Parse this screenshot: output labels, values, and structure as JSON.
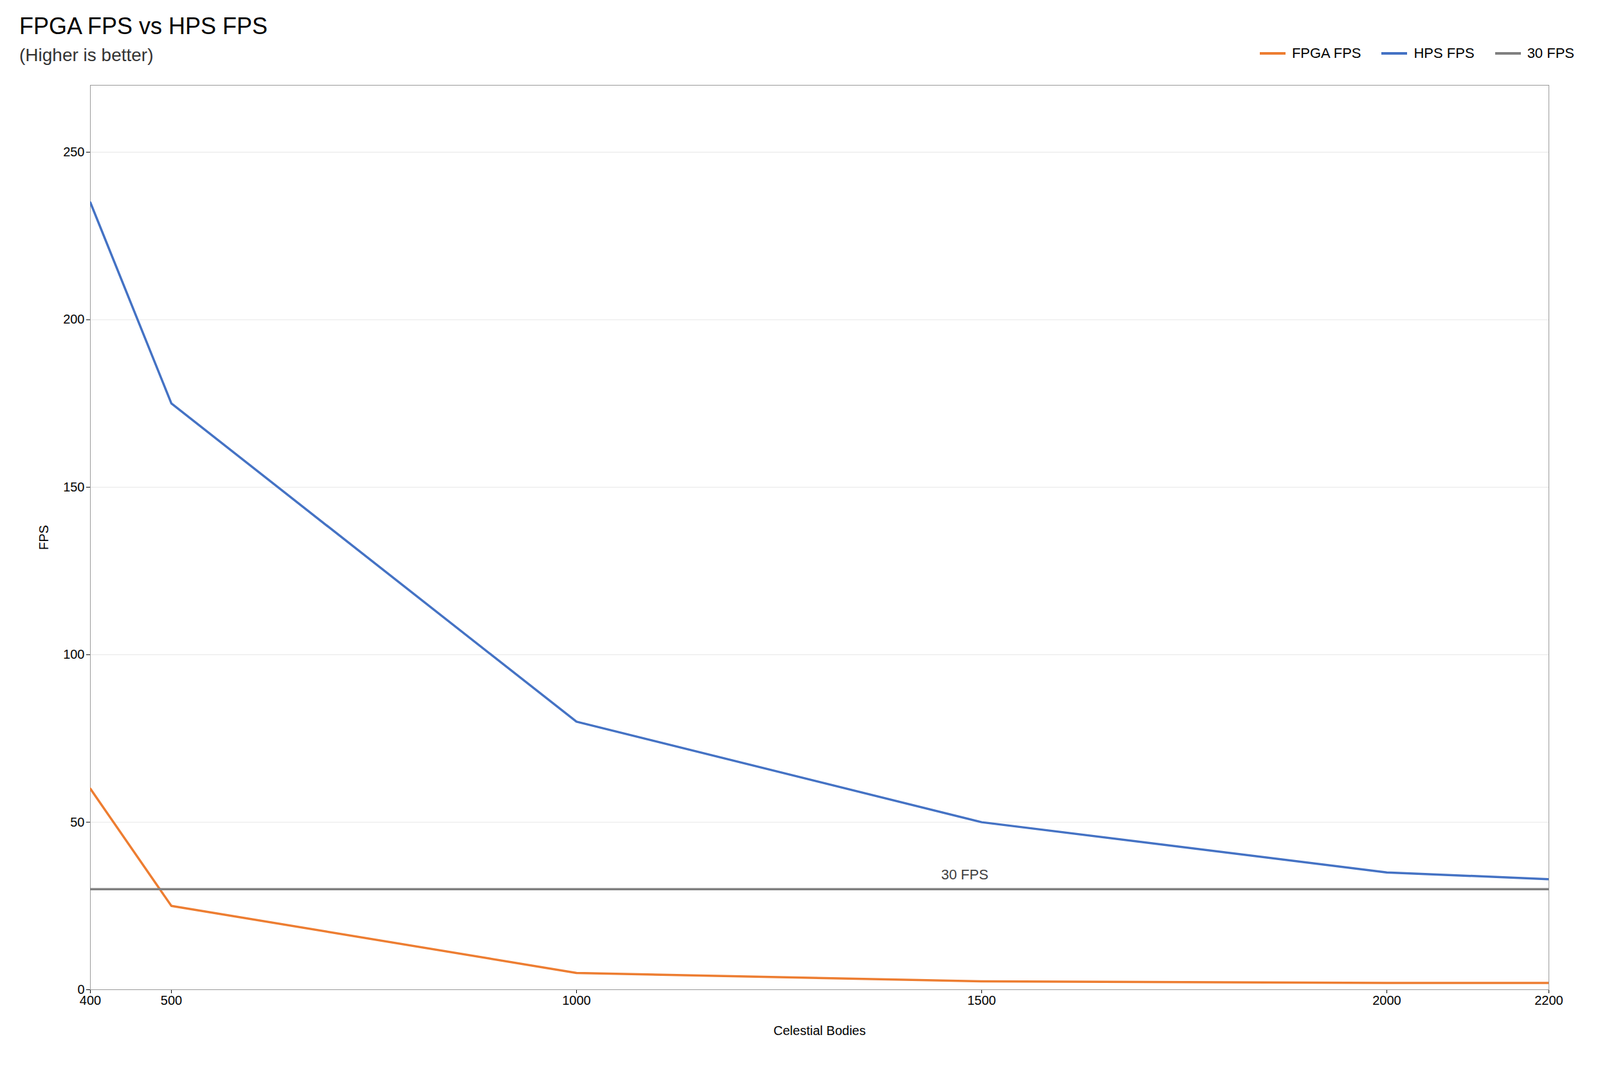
{
  "chart_data": {
    "type": "line",
    "title": "FPGA FPS vs HPS FPS",
    "subtitle": "(Higher is better)",
    "xlabel": "Celestial Bodies",
    "ylabel": "FPS",
    "x": [
      400,
      500,
      1000,
      1500,
      2000,
      2200
    ],
    "series": [
      {
        "name": "FPGA FPS",
        "color": "#ED7D31",
        "values": [
          60,
          25,
          5,
          2.5,
          2,
          2
        ]
      },
      {
        "name": "HPS FPS",
        "color": "#4472C4",
        "values": [
          235,
          175,
          80,
          50,
          35,
          33
        ]
      },
      {
        "name": "30 FPS",
        "color": "#808080",
        "values": [
          30,
          30,
          30,
          30,
          30,
          30
        ]
      }
    ],
    "annotations": [
      {
        "text": "30 FPS",
        "x": 1450,
        "y": 33
      }
    ],
    "xlim": [
      400,
      2200
    ],
    "xticks": [
      400,
      500,
      1000,
      1500,
      2000,
      2200
    ],
    "ylim": [
      0,
      270
    ],
    "yticks": [
      0,
      50,
      100,
      150,
      200,
      250
    ],
    "grid": "y",
    "legend": "top right"
  }
}
